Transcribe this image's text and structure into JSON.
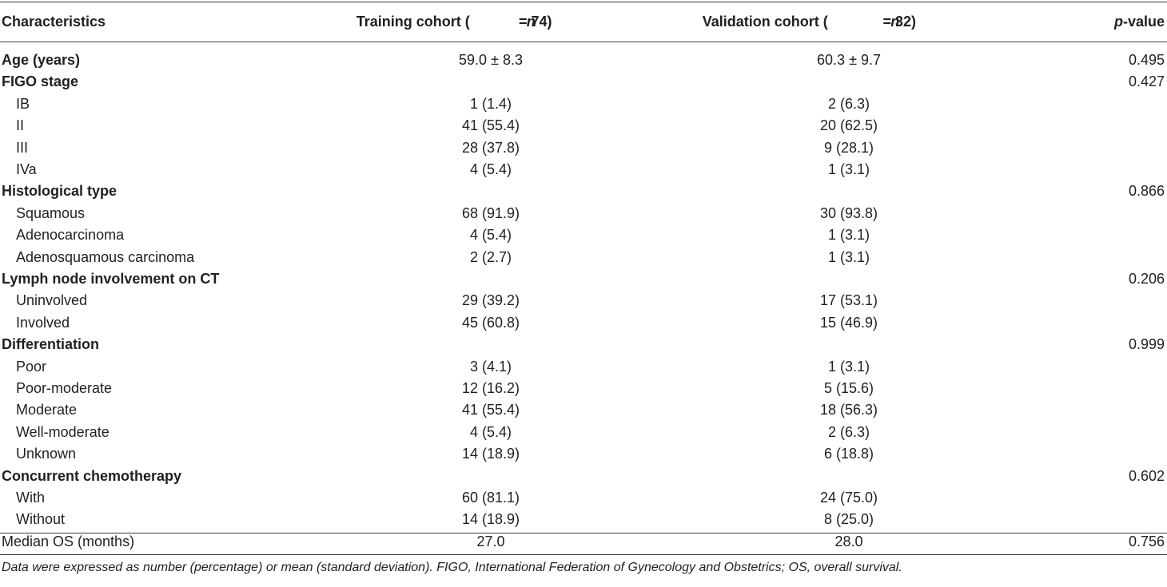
{
  "table": {
    "headers": {
      "characteristics": "Characteristics",
      "training_prefix": "Training cohort (",
      "training_n": "n",
      "training_suffix": " = 74)",
      "validation_prefix": "Validation cohort (",
      "validation_n": "n",
      "validation_suffix": " = 32)",
      "p_italic": "p",
      "p_suffix": "-value"
    },
    "rows": [
      {
        "label": "Age (years)",
        "training": "59.0 ± 8.3",
        "validation": "60.3 ± 9.7",
        "p": "0.495",
        "bold": true
      },
      {
        "label": "FIGO stage",
        "training": "",
        "validation": "",
        "p": "0.427",
        "bold": true
      },
      {
        "label": "IB",
        "training": "1 (1.4)",
        "validation": "2 (6.3)",
        "p": ""
      },
      {
        "label": "II",
        "training": "41 (55.4)",
        "validation": "20 (62.5)",
        "p": ""
      },
      {
        "label": "III",
        "training": "28 (37.8)",
        "validation": "9 (28.1)",
        "p": ""
      },
      {
        "label": "IVa",
        "training": "4 (5.4)",
        "validation": "1 (3.1)",
        "p": ""
      },
      {
        "label": "Histological type",
        "training": "",
        "validation": "",
        "p": "0.866",
        "bold": true
      },
      {
        "label": "Squamous",
        "training": "68 (91.9)",
        "validation": "30 (93.8)",
        "p": ""
      },
      {
        "label": "Adenocarcinoma",
        "training": "4 (5.4)",
        "validation": "1 (3.1)",
        "p": ""
      },
      {
        "label": "Adenosquamous carcinoma",
        "training": "2 (2.7)",
        "validation": "1 (3.1)",
        "p": ""
      },
      {
        "label": "Lymph node involvement on CT",
        "training": "",
        "validation": "",
        "p": "0.206",
        "bold": true
      },
      {
        "label": "Uninvolved",
        "training": "29 (39.2)",
        "validation": "17 (53.1)",
        "p": ""
      },
      {
        "label": "Involved",
        "training": "45 (60.8)",
        "validation": "15 (46.9)",
        "p": ""
      },
      {
        "label": "Differentiation",
        "training": "",
        "validation": "",
        "p": "0.999",
        "bold": true
      },
      {
        "label": "Poor",
        "training": "3 (4.1)",
        "validation": "1 (3.1)",
        "p": ""
      },
      {
        "label": "Poor-moderate",
        "training": "12 (16.2)",
        "validation": "5 (15.6)",
        "p": ""
      },
      {
        "label": "Moderate",
        "training": "41 (55.4)",
        "validation": "18 (56.3)",
        "p": ""
      },
      {
        "label": "Well-moderate",
        "training": "4 (5.4)",
        "validation": "2 (6.3)",
        "p": ""
      },
      {
        "label": "Unknown",
        "training": "14 (18.9)",
        "validation": "6 (18.8)",
        "p": ""
      },
      {
        "label": "Concurrent chemotherapy",
        "training": "",
        "validation": "",
        "p": "0.602",
        "bold": true
      },
      {
        "label": "With",
        "training": "60 (81.1)",
        "validation": "24 (75.0)",
        "p": ""
      },
      {
        "label": "Without",
        "training": "14 (18.9)",
        "validation": "8 (25.0)",
        "p": ""
      },
      {
        "label": "Median OS (months)",
        "training": "27.0",
        "validation": "28.0",
        "p": "0.756",
        "bold": false,
        "top": true
      }
    ],
    "footnote": "Data were expressed as number (percentage) or mean (standard deviation). FIGO, International Federation of Gynecology and Obstetrics; OS, overall survival."
  }
}
